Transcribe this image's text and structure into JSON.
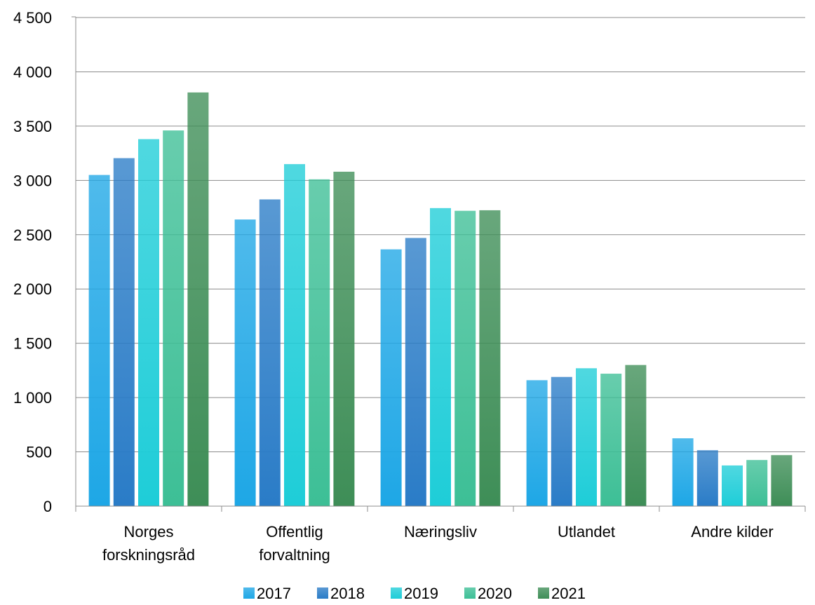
{
  "chart_data": {
    "type": "bar",
    "categories": [
      [
        "Norges",
        "forskningsråd"
      ],
      [
        "Offentlig",
        "forvaltning"
      ],
      [
        "Næringsliv"
      ],
      [
        "Utlandet"
      ],
      [
        "Andre kilder"
      ]
    ],
    "series": [
      {
        "name": "2017",
        "values": [
          3050,
          2640,
          2365,
          1160,
          625
        ],
        "color": "#1EA7E6"
      },
      {
        "name": "2018",
        "values": [
          3205,
          2825,
          2470,
          1190,
          515
        ],
        "color": "#2A7CC7"
      },
      {
        "name": "2019",
        "values": [
          3380,
          3150,
          2745,
          1270,
          375
        ],
        "color": "#1ECDD8"
      },
      {
        "name": "2020",
        "values": [
          3460,
          3010,
          2720,
          1220,
          425
        ],
        "color": "#3DBF96"
      },
      {
        "name": "2021",
        "values": [
          3810,
          3080,
          2725,
          1300,
          470
        ],
        "color": "#3E8E57"
      }
    ],
    "ylim": [
      0,
      4500
    ],
    "yticks": [
      0,
      500,
      1000,
      1500,
      2000,
      2500,
      3000,
      3500,
      4000,
      4500
    ],
    "ytick_labels": [
      "0",
      "500",
      "1 000",
      "1 500",
      "2 000",
      "2 500",
      "3 000",
      "3 500",
      "4 000",
      "4 500"
    ],
    "grid": true,
    "legend_position": "bottom",
    "title": "",
    "xlabel": "",
    "ylabel": ""
  }
}
